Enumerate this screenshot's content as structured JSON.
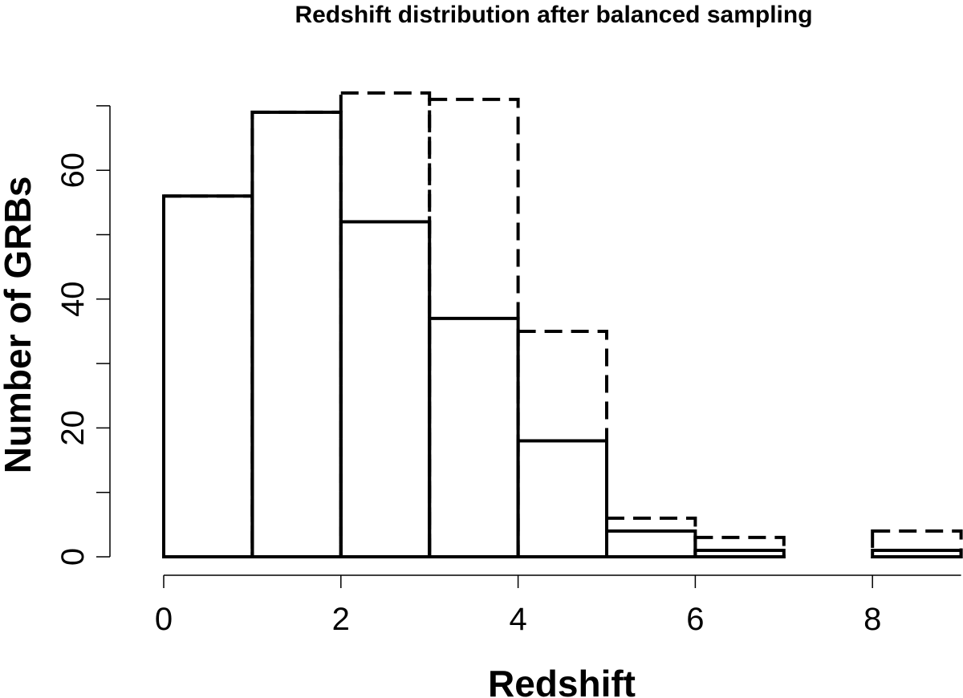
{
  "chart_data": {
    "type": "bar",
    "title": "Redshift distribution after balanced sampling",
    "xlabel": "Redshift",
    "ylabel": "Number of GRBs",
    "xlim": [
      0,
      9
    ],
    "ylim": [
      0,
      70
    ],
    "x_ticks": [
      0,
      2,
      4,
      6,
      8
    ],
    "y_ticks": [
      0,
      20,
      40,
      60
    ],
    "bin_edges": [
      0,
      1,
      2,
      3,
      4,
      5,
      6,
      7,
      8,
      9
    ],
    "grid": false,
    "legend": "none",
    "series": [
      {
        "style": "solid",
        "color": "#000000",
        "values": [
          56,
          69,
          52,
          37,
          18,
          4,
          1,
          0,
          1
        ]
      },
      {
        "style": "dashed",
        "color": "#000000",
        "values": [
          56,
          69,
          72,
          71,
          35,
          6,
          3,
          0,
          4
        ]
      }
    ]
  }
}
